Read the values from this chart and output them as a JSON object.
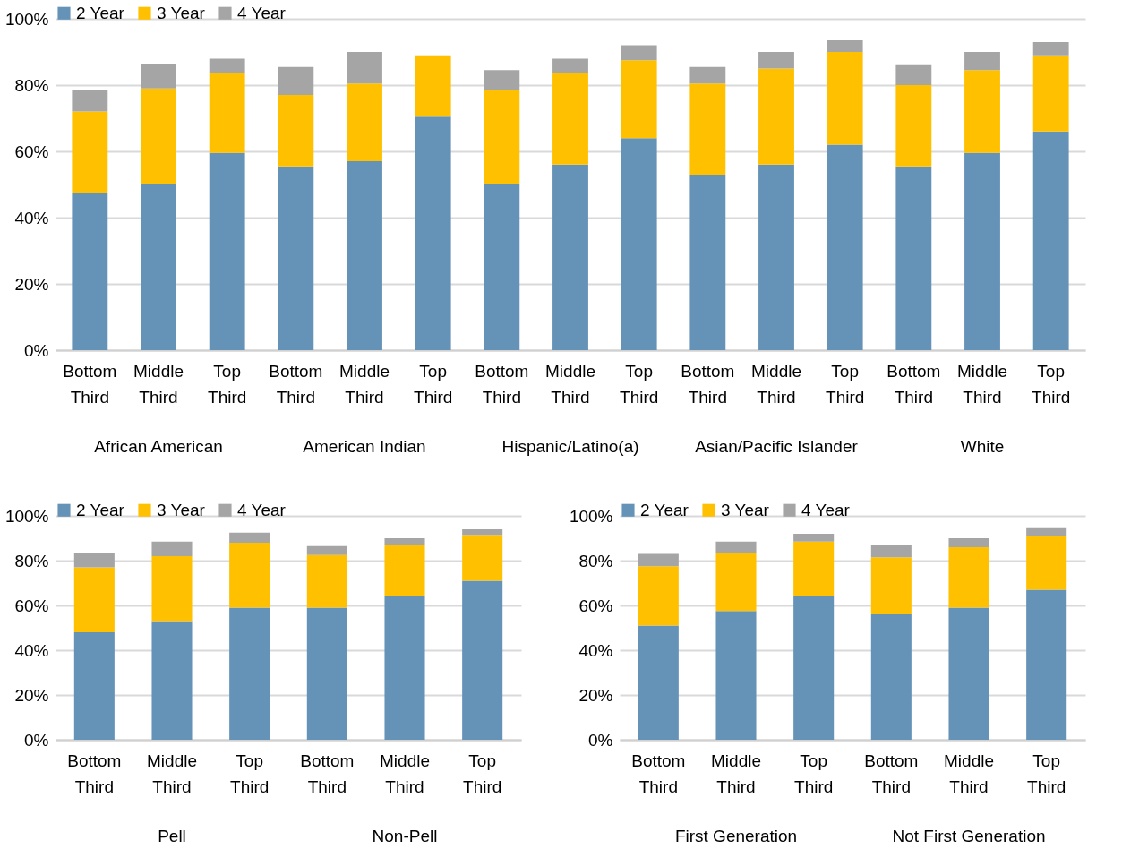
{
  "chart_data": [
    {
      "type": "bar",
      "stacked": true,
      "categories": [
        "Bottom Third",
        "Middle Third",
        "Top Third",
        "Bottom Third",
        "Middle Third",
        "Top Third",
        "Bottom Third",
        "Middle Third",
        "Top Third",
        "Bottom Third",
        "Middle Third",
        "Top Third",
        "Bottom Third",
        "Middle Third",
        "Top Third"
      ],
      "series": [
        {
          "name": "2 Year",
          "color": "#6593b8",
          "values": [
            47.5,
            50,
            59.5,
            55.5,
            57,
            70.5,
            50,
            56,
            64,
            53,
            56,
            62,
            55.5,
            59.5,
            66
          ]
        },
        {
          "name": "3 Year",
          "color": "#ffc000",
          "values": [
            24.5,
            29,
            24,
            21.5,
            23.5,
            18.5,
            28.5,
            27.5,
            23.5,
            27.5,
            29,
            28,
            24.5,
            25,
            23
          ]
        },
        {
          "name": "4 Year",
          "color": "#a5a5a5",
          "values": [
            6.5,
            7.5,
            4.5,
            8.5,
            9.5,
            0,
            6,
            4.5,
            4.5,
            5,
            5,
            3.5,
            6,
            5.5,
            4
          ]
        }
      ],
      "annotations": [
        "African American",
        "American Indian",
        "Hispanic/Latino(a)",
        "Asian/Pacific Islander",
        "White"
      ],
      "ylim": [
        0,
        100
      ],
      "yticks": [
        {
          "value": 0,
          "label": "0%"
        },
        {
          "value": 20,
          "label": "20%"
        },
        {
          "value": 40,
          "label": "40%"
        },
        {
          "value": 60,
          "label": "60%"
        },
        {
          "value": 80,
          "label": "80%"
        },
        {
          "value": 100,
          "label": "100%"
        }
      ],
      "grid": "y",
      "legend": "top"
    },
    {
      "type": "bar",
      "stacked": true,
      "categories": [
        "Bottom Third",
        "Middle Third",
        "Top Third",
        "Bottom Third",
        "Middle Third",
        "Top Third"
      ],
      "series": [
        {
          "name": "2 Year",
          "color": "#6593b8",
          "values": [
            48,
            53,
            59,
            59,
            64,
            71
          ]
        },
        {
          "name": "3 Year",
          "color": "#ffc000",
          "values": [
            29,
            29,
            29,
            23.5,
            23,
            20.5
          ]
        },
        {
          "name": "4 Year",
          "color": "#a5a5a5",
          "values": [
            6.5,
            6.5,
            4.5,
            4,
            3,
            2.5
          ]
        }
      ],
      "annotations": [
        "Pell",
        "Non-Pell"
      ],
      "ylim": [
        0,
        100
      ],
      "yticks": [
        {
          "value": 0,
          "label": "0%"
        },
        {
          "value": 20,
          "label": "20%"
        },
        {
          "value": 40,
          "label": "40%"
        },
        {
          "value": 60,
          "label": "60%"
        },
        {
          "value": 80,
          "label": "80%"
        },
        {
          "value": 100,
          "label": "100%"
        }
      ],
      "grid": "y",
      "legend": "top"
    },
    {
      "type": "bar",
      "stacked": true,
      "categories": [
        "Bottom Third",
        "Middle Third",
        "Top Third",
        "Bottom Third",
        "Middle Third",
        "Top Third"
      ],
      "series": [
        {
          "name": "2 Year",
          "color": "#6593b8",
          "values": [
            51,
            57.5,
            64,
            56,
            59,
            67
          ]
        },
        {
          "name": "3 Year",
          "color": "#ffc000",
          "values": [
            26.5,
            26,
            24.5,
            25.5,
            27,
            24
          ]
        },
        {
          "name": "4 Year",
          "color": "#a5a5a5",
          "values": [
            5.5,
            5,
            3.5,
            5.5,
            4,
            3.5
          ]
        }
      ],
      "annotations": [
        "First Generation",
        "Not First Generation"
      ],
      "ylim": [
        0,
        100
      ],
      "yticks": [
        {
          "value": 0,
          "label": "0%"
        },
        {
          "value": 20,
          "label": "20%"
        },
        {
          "value": 40,
          "label": "40%"
        },
        {
          "value": 60,
          "label": "60%"
        },
        {
          "value": 80,
          "label": "80%"
        },
        {
          "value": 100,
          "label": "100%"
        }
      ],
      "grid": "y",
      "legend": "top"
    }
  ]
}
